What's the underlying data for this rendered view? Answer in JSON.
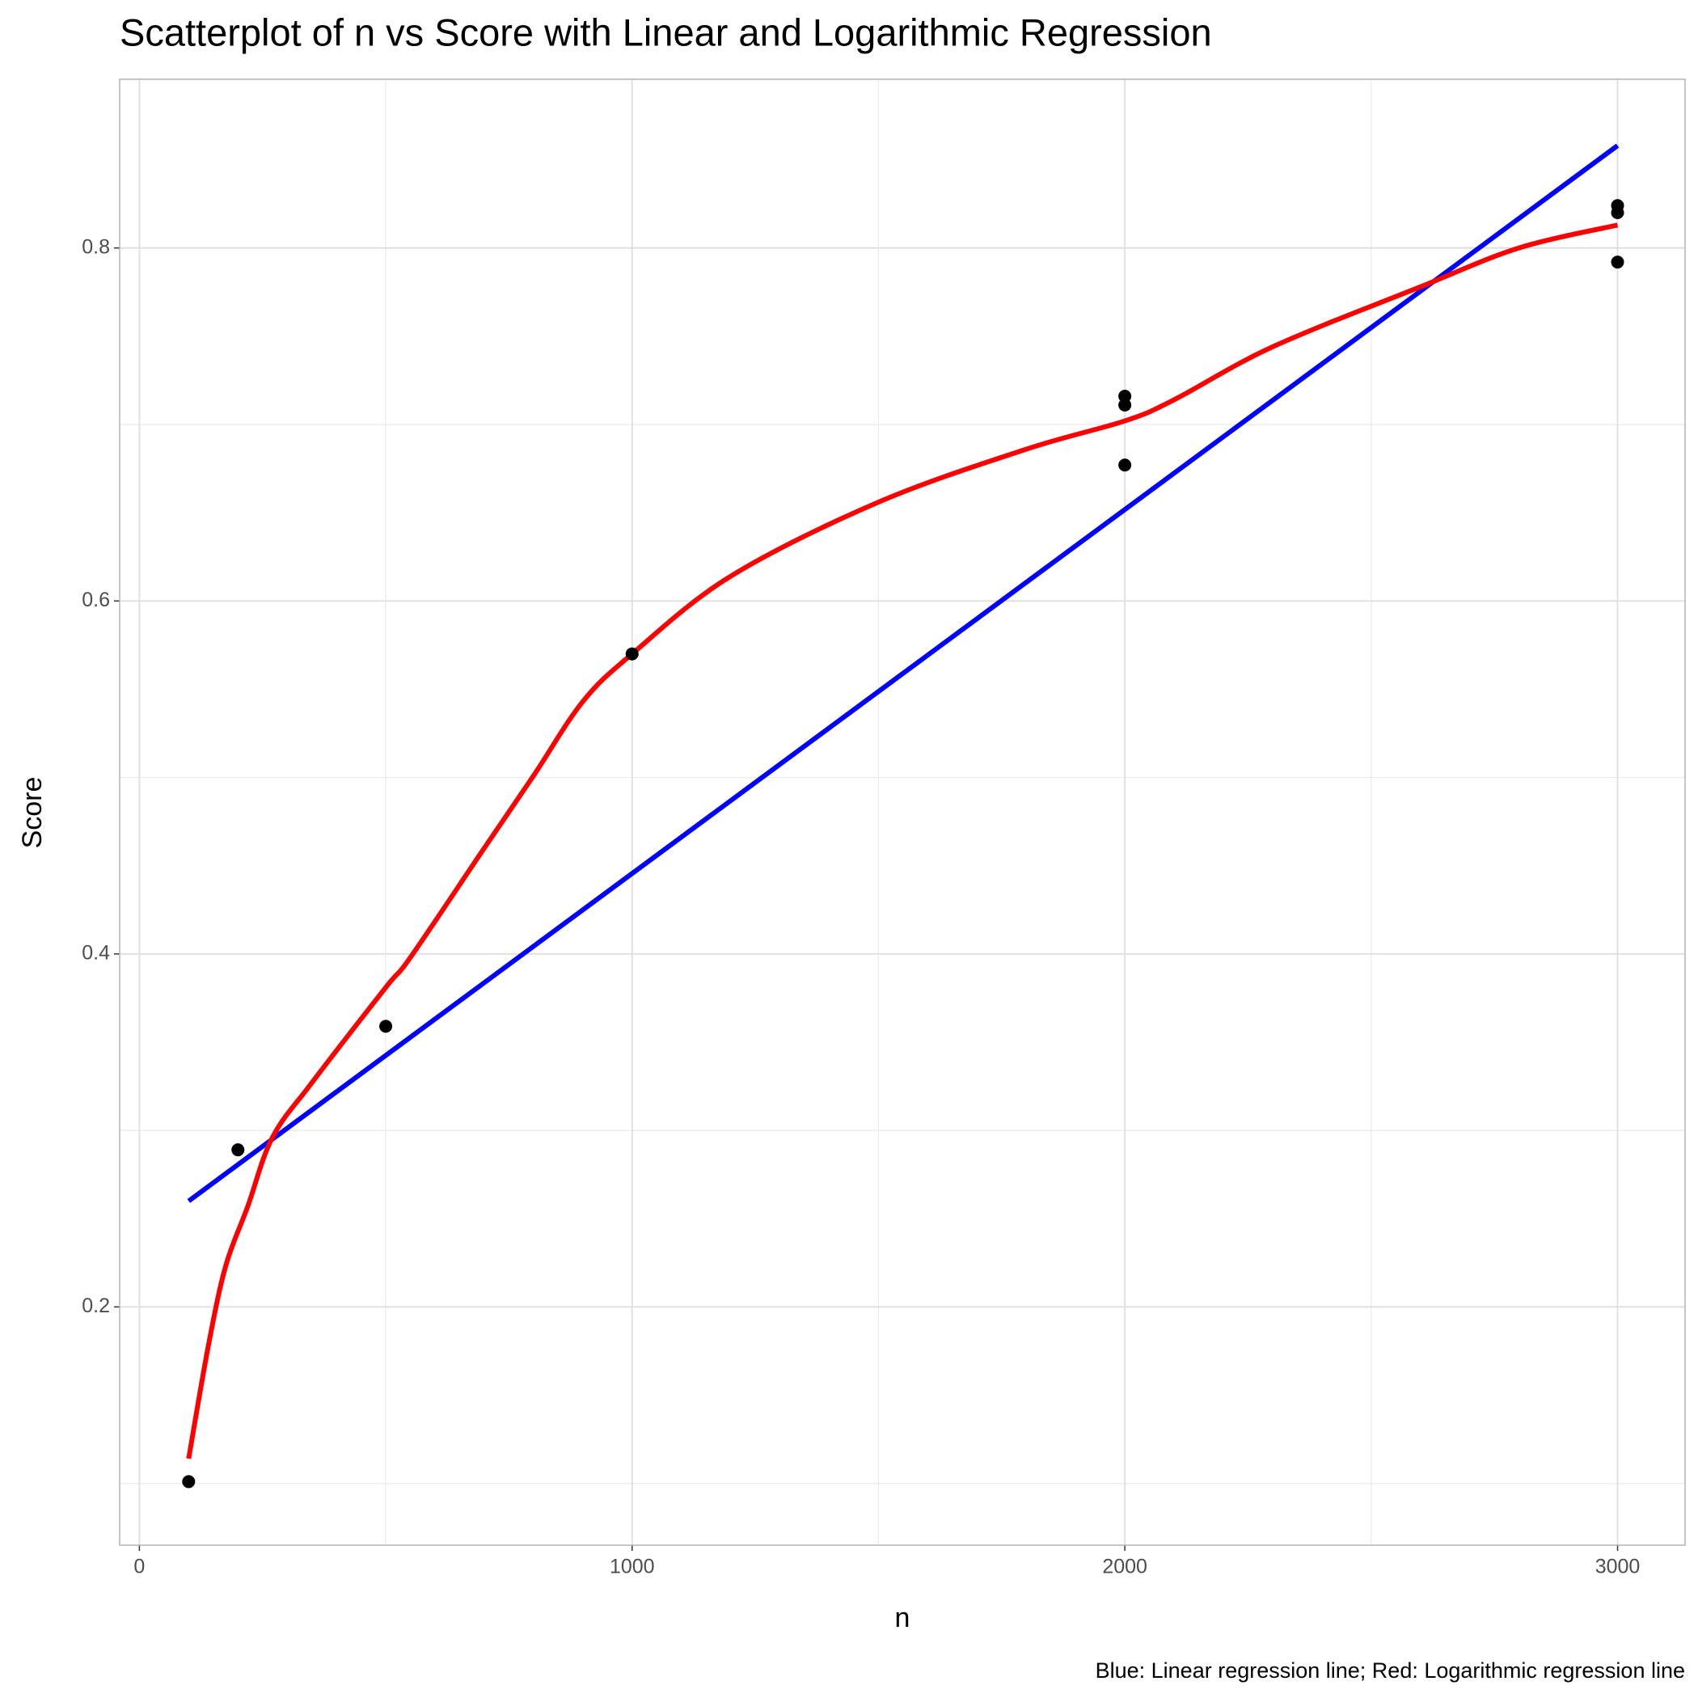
{
  "chart_data": {
    "type": "scatter",
    "title": "Scatterplot of n vs Score with Linear and Logarithmic Regression",
    "x_label": "n",
    "y_label": "Score",
    "caption": "Blue: Linear regression line; Red: Logarithmic regression line",
    "xlim": [
      -40,
      3137
    ],
    "xticks": [
      0,
      1000,
      2000,
      3000
    ],
    "ylim": [
      0.065,
      0.8956
    ],
    "yticks": [
      0.2,
      0.4,
      0.6,
      0.8
    ],
    "grid": true,
    "series": [
      {
        "type": "scatter",
        "color": "#000000",
        "x": [
          100,
          200,
          500,
          1000,
          2000,
          2000,
          2000,
          3000,
          3000,
          3000
        ],
        "values": [
          0.101,
          0.289,
          0.359,
          0.57,
          0.716,
          0.711,
          0.677,
          0.824,
          0.82,
          0.792
        ]
      },
      {
        "type": "line",
        "color": "#0000ff",
        "x": [
          100,
          3000
        ],
        "values": [
          0.26,
          0.858
        ]
      },
      {
        "type": "line",
        "color": "#ff0000",
        "x": [
          100,
          140,
          175,
          220,
          270,
          350,
          500,
          550,
          700,
          800,
          900,
          1000,
          1200,
          1500,
          1800,
          2000,
          2100,
          2300,
          2600,
          2800,
          3000
        ],
        "values": [
          0.114,
          0.178,
          0.223,
          0.257,
          0.296,
          0.327,
          0.381,
          0.398,
          0.46,
          0.501,
          0.543,
          0.57,
          0.614,
          0.656,
          0.686,
          0.702,
          0.714,
          0.744,
          0.778,
          0.8,
          0.813
        ]
      }
    ]
  }
}
